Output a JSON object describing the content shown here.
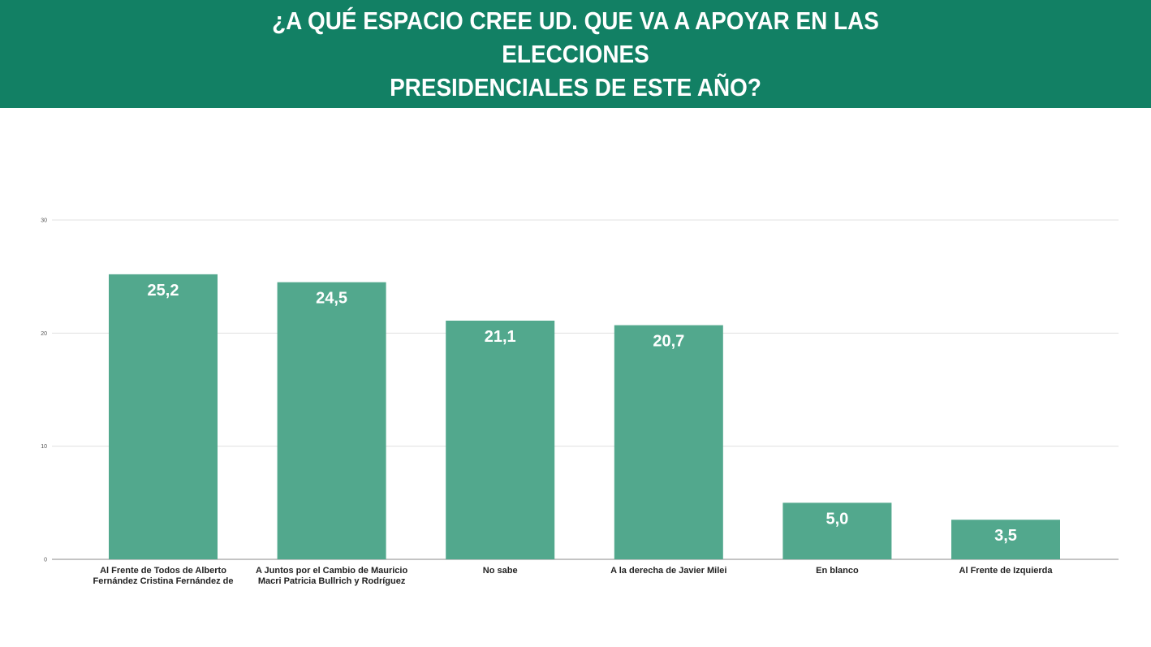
{
  "header": {
    "title_line1": "¿A QUÉ ESPACIO CREE UD. QUE VA A APOYAR EN LAS ELECCIONES",
    "title_line2": "PRESIDENCIALES DE ESTE AÑO?"
  },
  "colors": {
    "header_bg": "#128064",
    "bar": "#52a88d",
    "grid": "#e0e0e0",
    "axis": "#888888"
  },
  "chart_data": {
    "type": "bar",
    "title": "¿A QUÉ ESPACIO CREE UD. QUE VA A APOYAR EN LAS ELECCIONES PRESIDENCIALES DE ESTE AÑO?",
    "categories": [
      [
        "Al Frente de Todos de Alberto",
        "Fernández Cristina Fernández de"
      ],
      [
        "A Juntos por el Cambio de Mauricio",
        "Macri Patricia Bullrich y Rodríguez"
      ],
      [
        "No sabe"
      ],
      [
        "A la derecha de Javier Milei"
      ],
      [
        "En blanco"
      ],
      [
        "Al Frente de Izquierda"
      ]
    ],
    "values": [
      25.2,
      24.5,
      21.1,
      20.7,
      5.0,
      3.5
    ],
    "value_labels": [
      "25,2",
      "24,5",
      "21,1",
      "20,7",
      "5,0",
      "3,5"
    ],
    "yticks": [
      0,
      10,
      20,
      30
    ],
    "ytick_labels": [
      "0",
      "10",
      "20",
      "30"
    ],
    "ylim": [
      0,
      30
    ],
    "grid": true,
    "legend": "none",
    "xlabel": "",
    "ylabel": ""
  }
}
